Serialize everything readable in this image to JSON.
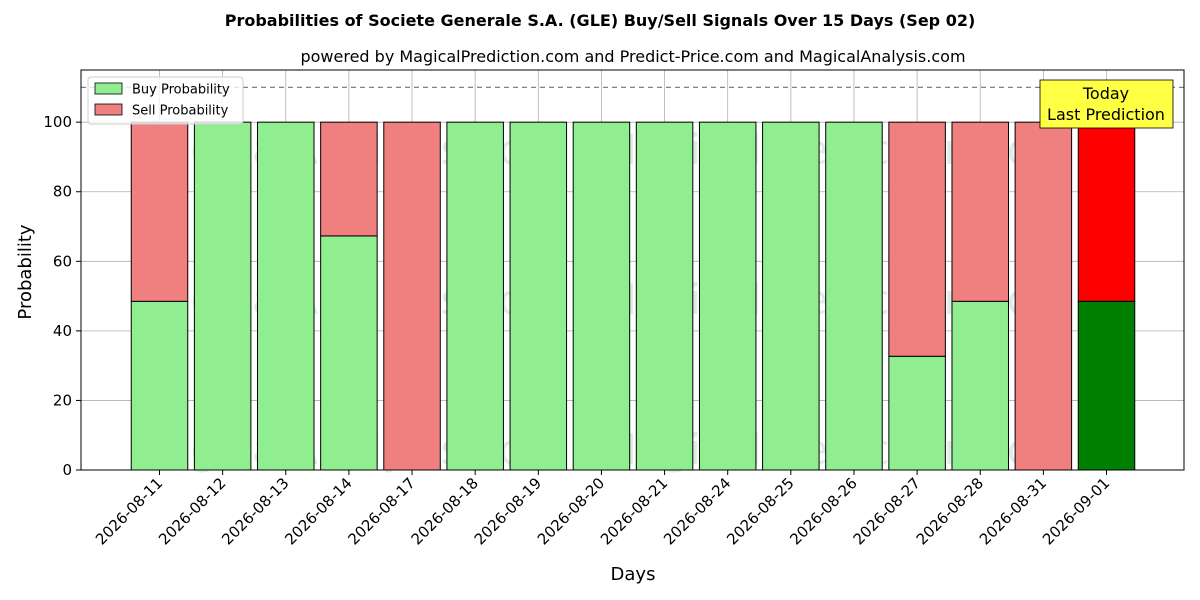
{
  "chart_data": {
    "type": "bar",
    "stacked": true,
    "title": "Probabilities of Societe Generale S.A. (GLE) Buy/Sell Signals Over 15 Days (Sep 02)",
    "subtitle": "powered by MagicalPrediction.com and Predict-Price.com and MagicalAnalysis.com",
    "xlabel": "Days",
    "ylabel": "Probability",
    "ylim": [
      0,
      115
    ],
    "yticks": [
      0,
      20,
      40,
      60,
      80,
      100
    ],
    "grid": true,
    "reference_line": 110,
    "legend_position": "top-left",
    "categories": [
      "2026-08-11",
      "2026-08-12",
      "2026-08-13",
      "2026-08-14",
      "2026-08-17",
      "2026-08-18",
      "2026-08-19",
      "2026-08-20",
      "2026-08-21",
      "2026-08-24",
      "2026-08-25",
      "2026-08-26",
      "2026-08-27",
      "2026-08-28",
      "2026-08-31",
      "2026-09-01"
    ],
    "series": [
      {
        "name": "Buy Probability",
        "color": "#90ee90",
        "last_color": "#008000",
        "values": [
          48.5,
          100,
          100,
          67.3,
          0,
          100,
          100,
          100,
          100,
          100,
          100,
          100,
          32.7,
          48.5,
          0,
          48.5
        ]
      },
      {
        "name": "Sell Probability",
        "color": "#f08080",
        "last_color": "#ff0000",
        "values": [
          51.5,
          0,
          0,
          32.7,
          100,
          0,
          0,
          0,
          0,
          0,
          0,
          0,
          67.3,
          51.5,
          100,
          51.5
        ]
      }
    ],
    "annotation": {
      "line1": "Today",
      "line2": "Last Prediction",
      "color": "#ffff44"
    },
    "watermarks": [
      "MagicalAnalysis.com",
      "MagicalPrediction.com"
    ]
  }
}
